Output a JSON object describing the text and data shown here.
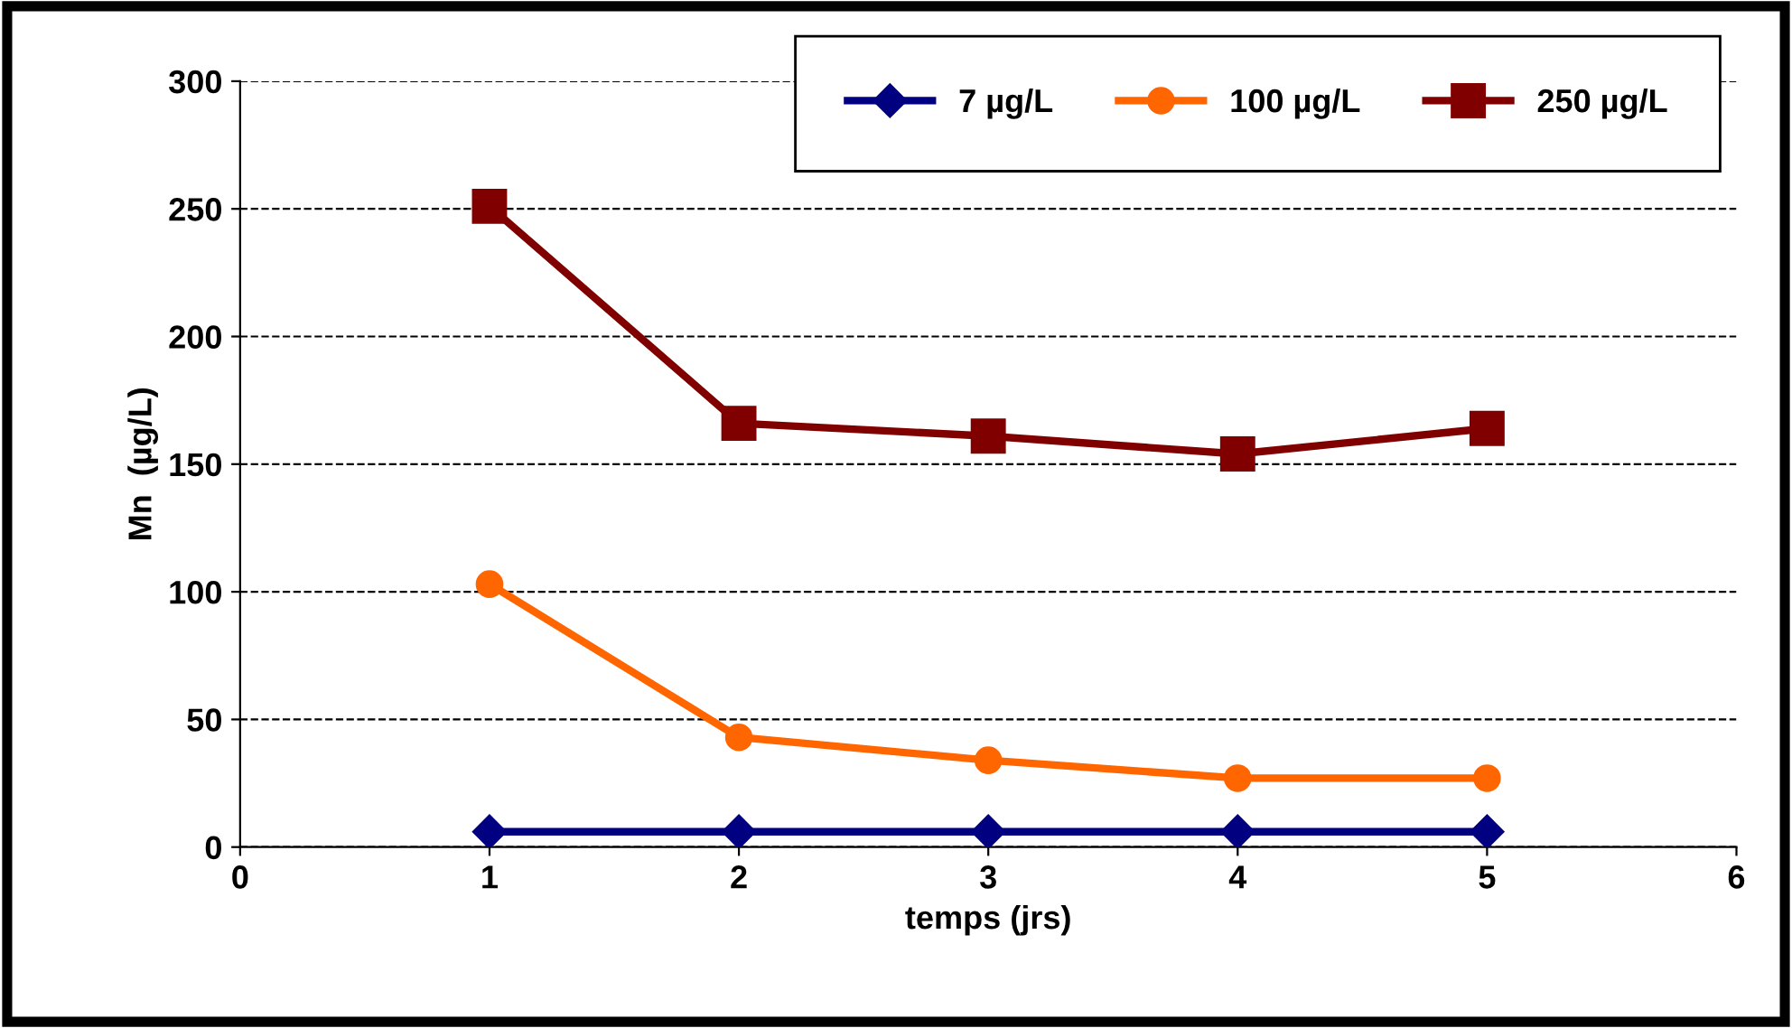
{
  "chart_data": {
    "type": "line",
    "xlabel": "temps (jrs)",
    "ylabel": "Mn  (µg/L)",
    "x": [
      1,
      2,
      3,
      4,
      5
    ],
    "series": [
      {
        "name": "7 µg/L",
        "color": "#000080",
        "marker": "diamond",
        "values": [
          6,
          6,
          6,
          6,
          6
        ]
      },
      {
        "name": "100 µg/L",
        "color": "#ff6600",
        "marker": "circle",
        "values": [
          103,
          43,
          34,
          27,
          27
        ]
      },
      {
        "name": "250 µg/L",
        "color": "#800000",
        "marker": "square",
        "values": [
          251,
          166,
          161,
          154,
          164
        ]
      }
    ],
    "xlim": [
      0,
      6
    ],
    "xticks": [
      0,
      1,
      2,
      3,
      4,
      5,
      6
    ],
    "ylim": [
      0,
      300
    ],
    "yticks": [
      0,
      50,
      100,
      150,
      200,
      250,
      300
    ],
    "grid": "y",
    "legend": "top right",
    "line_style": "solid"
  }
}
